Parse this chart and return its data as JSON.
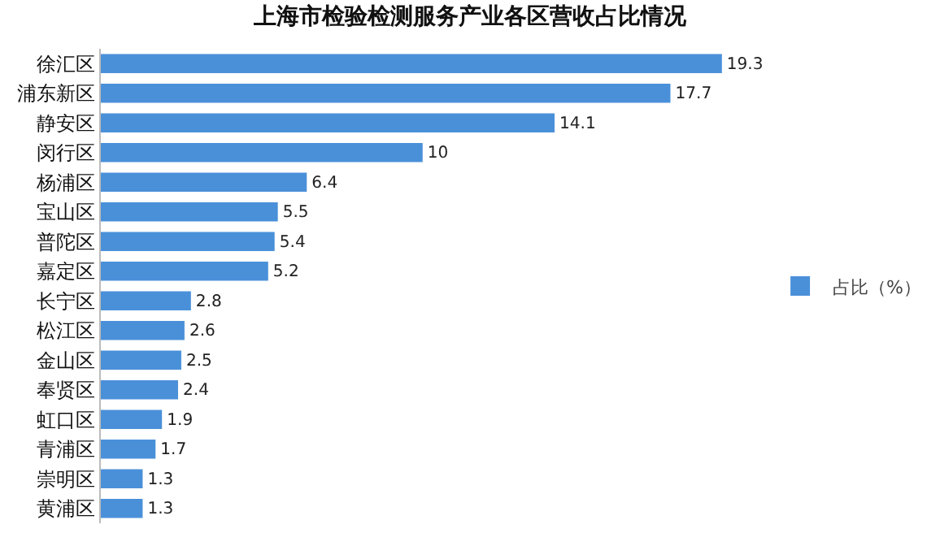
{
  "chart_data": {
    "type": "bar",
    "orientation": "horizontal",
    "title": "上海市检验检测服务产业各区营收占比情况",
    "categories": [
      "徐汇区",
      "浦东新区",
      "静安区",
      "闵行区",
      "杨浦区",
      "宝山区",
      "普陀区",
      "嘉定区",
      "长宁区",
      "松江区",
      "金山区",
      "奉贤区",
      "虹口区",
      "青浦区",
      "崇明区",
      "黄浦区"
    ],
    "series": [
      {
        "name": "占比（%）",
        "color": "#4a90d9",
        "values": [
          19.3,
          17.7,
          14.1,
          10,
          6.4,
          5.5,
          5.4,
          5.2,
          2.8,
          2.6,
          2.5,
          2.4,
          1.9,
          1.7,
          1.3,
          1.3
        ]
      }
    ],
    "data_labels": true,
    "legend": "right"
  }
}
